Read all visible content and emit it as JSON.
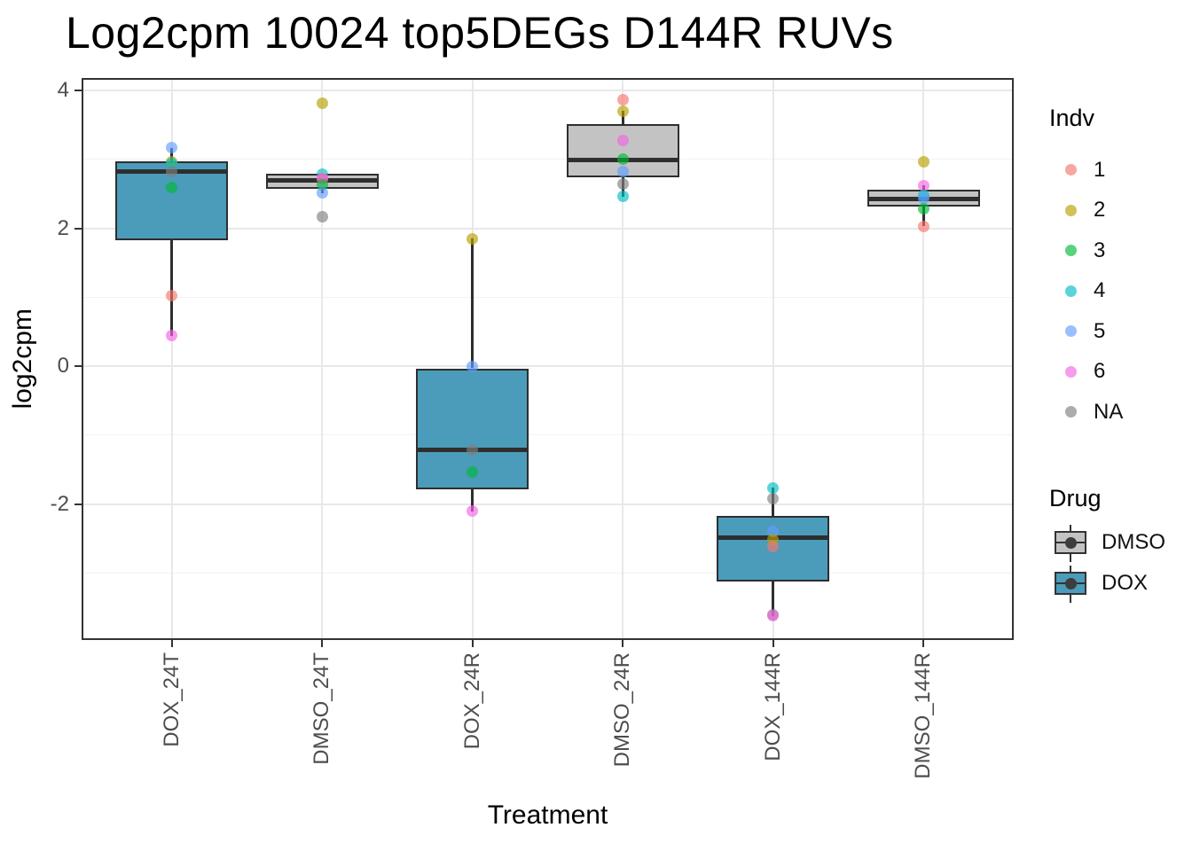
{
  "chart_data": {
    "type": "boxplot",
    "title": "Log2cpm 10024 top5DEGs D144R RUVs",
    "xlabel": "Treatment",
    "ylabel": "log2cpm",
    "ylim": [
      -3.97,
      4.18
    ],
    "yticks": [
      4,
      2,
      0,
      -2
    ],
    "yticks_minor": [
      3,
      1,
      -1,
      -3
    ],
    "categories": [
      "DOX_24T",
      "DMSO_24T",
      "DOX_24R",
      "DMSO_24R",
      "DOX_144R",
      "DMSO_144R"
    ],
    "grid": "on",
    "legend_position": "right",
    "boxes": [
      {
        "category": "DOX_24T",
        "drug": "DOX",
        "q1": 1.83,
        "median": 2.82,
        "q3": 2.97,
        "whisker_low": 0.44,
        "whisker_high": 3.17
      },
      {
        "category": "DMSO_24T",
        "drug": "DMSO",
        "q1": 2.57,
        "median": 2.69,
        "q3": 2.79,
        "whisker_low": 2.51,
        "whisker_high": 2.79
      },
      {
        "category": "DOX_24R",
        "drug": "DOX",
        "q1": -1.79,
        "median": -1.21,
        "q3": -0.03,
        "whisker_low": -2.1,
        "whisker_high": 1.85
      },
      {
        "category": "DMSO_24R",
        "drug": "DMSO",
        "q1": 2.74,
        "median": 2.99,
        "q3": 3.51,
        "whisker_low": 2.46,
        "whisker_high": 3.7
      },
      {
        "category": "DOX_144R",
        "drug": "DOX",
        "q1": -3.12,
        "median": -2.49,
        "q3": -2.17,
        "whisker_low": -3.62,
        "whisker_high": -1.76
      },
      {
        "category": "DMSO_144R",
        "drug": "DMSO",
        "q1": 2.31,
        "median": 2.42,
        "q3": 2.56,
        "whisker_low": 2.03,
        "whisker_high": 2.62
      }
    ],
    "points": [
      {
        "category": "DOX_24T",
        "indv": "5",
        "value": 3.17
      },
      {
        "category": "DOX_24T",
        "indv": "2",
        "value": 2.97
      },
      {
        "category": "DOX_24T",
        "indv": "4",
        "value": 2.94
      },
      {
        "category": "DOX_24T",
        "indv": "NA",
        "value": 2.82
      },
      {
        "category": "DOX_24T",
        "indv": "3",
        "value": 2.59
      },
      {
        "category": "DOX_24T",
        "indv": "1",
        "value": 1.02
      },
      {
        "category": "DOX_24T",
        "indv": "6",
        "value": 0.44
      },
      {
        "category": "DMSO_24T",
        "indv": "2",
        "value": 3.82
      },
      {
        "category": "DMSO_24T",
        "indv": "4",
        "value": 2.79
      },
      {
        "category": "DMSO_24T",
        "indv": "1",
        "value": 2.72
      },
      {
        "category": "DMSO_24T",
        "indv": "6",
        "value": 2.72
      },
      {
        "category": "DMSO_24T",
        "indv": "3",
        "value": 2.63
      },
      {
        "category": "DMSO_24T",
        "indv": "5",
        "value": 2.51
      },
      {
        "category": "DMSO_24T",
        "indv": "NA",
        "value": 2.17
      },
      {
        "category": "DOX_24R",
        "indv": "2",
        "value": 1.85
      },
      {
        "category": "DOX_24R",
        "indv": "5",
        "value": 0.0
      },
      {
        "category": "DOX_24R",
        "indv": "NA",
        "value": -1.21
      },
      {
        "category": "DOX_24R",
        "indv": "3",
        "value": -1.53
      },
      {
        "category": "DOX_24R",
        "indv": "6",
        "value": -2.1
      },
      {
        "category": "DMSO_24R",
        "indv": "1",
        "value": 3.86
      },
      {
        "category": "DMSO_24R",
        "indv": "2",
        "value": 3.7
      },
      {
        "category": "DMSO_24R",
        "indv": "6",
        "value": 3.27
      },
      {
        "category": "DMSO_24R",
        "indv": "3",
        "value": 3.0
      },
      {
        "category": "DMSO_24R",
        "indv": "5",
        "value": 2.83
      },
      {
        "category": "DMSO_24R",
        "indv": "NA",
        "value": 2.64
      },
      {
        "category": "DMSO_24R",
        "indv": "4",
        "value": 2.46
      },
      {
        "category": "DOX_144R",
        "indv": "4",
        "value": -1.76
      },
      {
        "category": "DOX_144R",
        "indv": "NA",
        "value": -1.92
      },
      {
        "category": "DOX_144R",
        "indv": "5",
        "value": -2.4
      },
      {
        "category": "DOX_144R",
        "indv": "2",
        "value": -2.51
      },
      {
        "category": "DOX_144R",
        "indv": "1",
        "value": -2.62
      },
      {
        "category": "DOX_144R",
        "indv": "NA",
        "value": -3.6
      },
      {
        "category": "DOX_144R",
        "indv": "6",
        "value": -3.62
      },
      {
        "category": "DMSO_144R",
        "indv": "2",
        "value": 2.97
      },
      {
        "category": "DMSO_144R",
        "indv": "6",
        "value": 2.62
      },
      {
        "category": "DMSO_144R",
        "indv": "4",
        "value": 2.48
      },
      {
        "category": "DMSO_144R",
        "indv": "5",
        "value": 2.44
      },
      {
        "category": "DMSO_144R",
        "indv": "3",
        "value": 2.29
      },
      {
        "category": "DMSO_144R",
        "indv": "1",
        "value": 2.03
      }
    ],
    "legend": {
      "indv_title": "Indv",
      "indv_items": [
        {
          "label": "1",
          "key": "1"
        },
        {
          "label": "2",
          "key": "2"
        },
        {
          "label": "3",
          "key": "3"
        },
        {
          "label": "4",
          "key": "4"
        },
        {
          "label": "5",
          "key": "5"
        },
        {
          "label": "6",
          "key": "6"
        },
        {
          "label": "NA",
          "key": "NA"
        }
      ],
      "drug_title": "Drug",
      "drug_items": [
        {
          "label": "DMSO",
          "key": "DMSO"
        },
        {
          "label": "DOX",
          "key": "DOX"
        }
      ]
    },
    "colors": {
      "indv": {
        "1": "#F8766D",
        "2": "#B79F00",
        "3": "#00BA38",
        "4": "#00BFC4",
        "5": "#619CFF",
        "6": "#F564E3",
        "NA": "#7F7F7F"
      },
      "point_alpha": 0.65,
      "drug_fill": {
        "DMSO": "#C3C3C3",
        "DOX": "#4A9CBA"
      },
      "box_stroke": "#2E2E2E",
      "grid_major": "#E8E8E8",
      "grid_minor": "#F2F2F2",
      "axis_text": "#4D4D4D",
      "axis_line": "#333333"
    }
  }
}
